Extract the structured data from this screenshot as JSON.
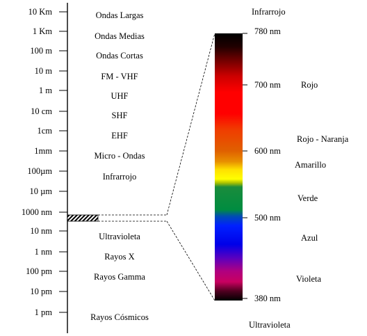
{
  "scale_left": [
    "10 Km",
    "1 Km",
    "100 m",
    "10 m",
    "1 m",
    "10 cm",
    "1cm",
    "1mm",
    "100µm",
    "10 µm",
    "1000 nm",
    "10 nm",
    "1 nm",
    "100 pm",
    "10 pm",
    "1 pm"
  ],
  "bands": [
    "Ondas Largas",
    "Ondas Medias",
    "Ondas Cortas",
    "FM - VHF",
    "UHF",
    "SHF",
    "EHF",
    "Micro - Ondas",
    "Infrarrojo",
    "Ultravioleta",
    "Rayos X",
    "Rayos Gamma",
    "Rayos Cósmicos"
  ],
  "visible": {
    "top_label": "Infrarrojo",
    "bottom_label": "Ultravioleta",
    "ticks": [
      "780 nm",
      "700 nm",
      "600 nm",
      "500 nm",
      "380 nm"
    ],
    "colors": [
      "Rojo",
      "Rojo - Naranja",
      "Amarillo",
      "Verde",
      "Azul",
      "Violeta"
    ]
  }
}
